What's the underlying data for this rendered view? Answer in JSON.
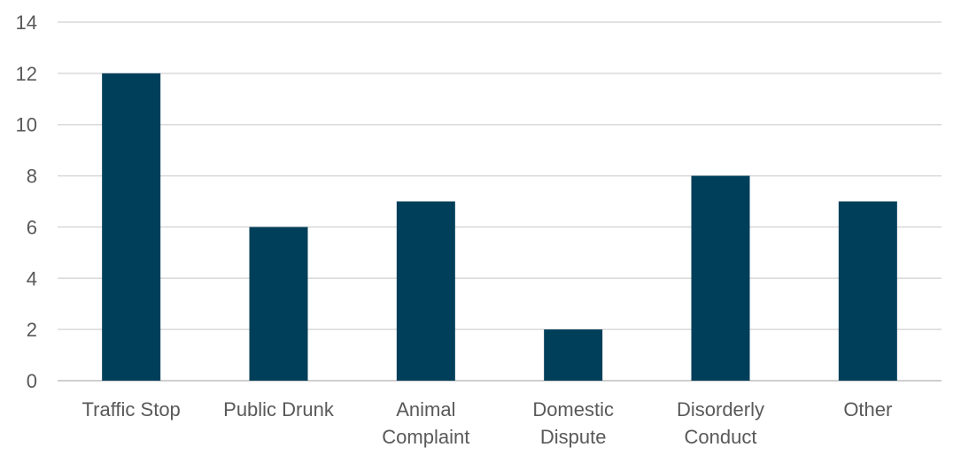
{
  "chart_data": {
    "type": "bar",
    "categories": [
      [
        "Traffic Stop"
      ],
      [
        "Public Drunk"
      ],
      [
        "Animal",
        "Complaint"
      ],
      [
        "Domestic",
        "Dispute"
      ],
      [
        "Disorderly",
        "Conduct"
      ],
      [
        "Other"
      ]
    ],
    "values": [
      12,
      6,
      7,
      2,
      8,
      7
    ],
    "title": "",
    "xlabel": "",
    "ylabel": "",
    "ylim": [
      0,
      14
    ],
    "yticks": [
      0,
      2,
      4,
      6,
      8,
      10,
      12,
      14
    ],
    "grid": true,
    "legend": "none",
    "colors": {
      "bar": "#003f5a",
      "grid": "#d9d9d9",
      "text": "#595959"
    }
  }
}
